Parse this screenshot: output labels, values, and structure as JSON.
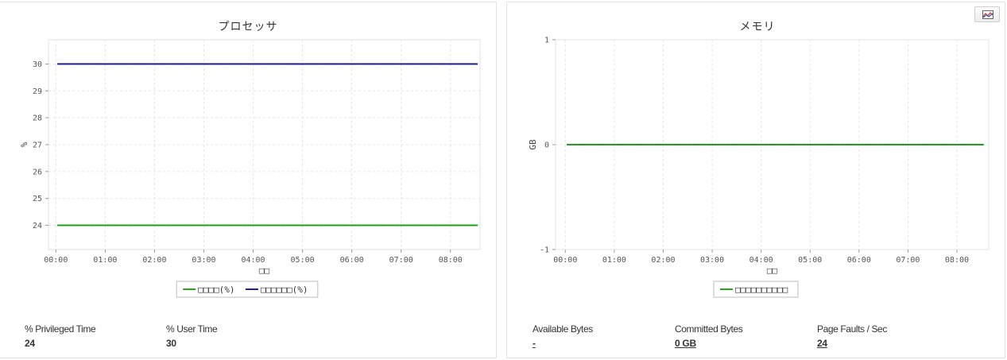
{
  "chart_data": [
    {
      "type": "line",
      "title": "プロセッサ",
      "xlabel": "□□",
      "ylabel": "%",
      "x_ticks": [
        "00:00",
        "01:00",
        "02:00",
        "03:00",
        "04:00",
        "05:00",
        "06:00",
        "07:00",
        "08:00"
      ],
      "y_ticks": [
        24,
        25,
        26,
        27,
        28,
        29,
        30
      ],
      "ylim": [
        23.1,
        30.9
      ],
      "xlim_hours": [
        -0.15,
        8.6
      ],
      "x_range_hours": [
        0.03,
        8.55
      ],
      "grid": true,
      "legend_position": "bottom-center",
      "series": [
        {
          "name": "□□□□(%)",
          "color": "#22aa22",
          "values": [
            24,
            24
          ]
        },
        {
          "name": "□□□□□□(%)",
          "color": "#1f1f99",
          "values": [
            30,
            30
          ]
        }
      ]
    },
    {
      "type": "line",
      "title": "メモリ",
      "xlabel": "□□",
      "ylabel": "GB",
      "x_ticks": [
        "00:00",
        "01:00",
        "02:00",
        "03:00",
        "04:00",
        "05:00",
        "06:00",
        "07:00",
        "08:00"
      ],
      "y_ticks": [
        1,
        0,
        -1
      ],
      "ylim": [
        -1,
        1
      ],
      "xlim_hours": [
        -0.2,
        8.65
      ],
      "x_range_hours": [
        0.03,
        8.55
      ],
      "grid": true,
      "legend_position": "bottom-center",
      "series": [
        {
          "name": "□□□□□□□□□□",
          "color": "#22aa22",
          "values": [
            0,
            0
          ]
        }
      ]
    }
  ],
  "left_stats": [
    {
      "label": "% Privileged Time",
      "value": "24"
    },
    {
      "label": "% User Time",
      "value": "30"
    }
  ],
  "right_stats": [
    {
      "label": "Available Bytes",
      "value": "-"
    },
    {
      "label": "Committed Bytes",
      "value": "0 GB"
    },
    {
      "label": "Page Faults / Sec",
      "value": "24"
    }
  ],
  "export_icon": "chart-export-icon"
}
